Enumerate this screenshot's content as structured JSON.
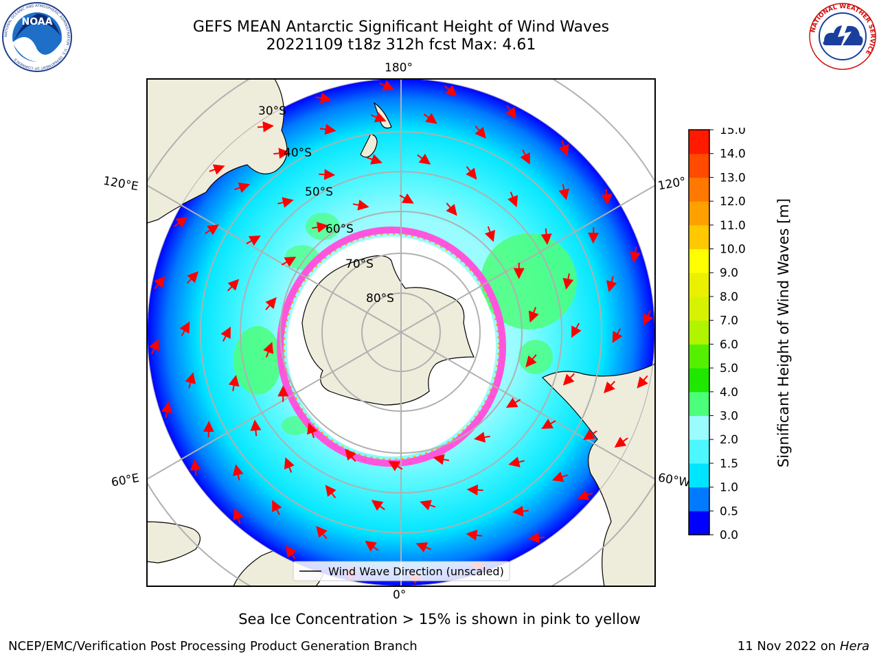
{
  "title": {
    "line1": "GEFS MEAN Antarctic Significant Height of Wind Waves",
    "line2": "20221109 t18z 312h fcst   Max: 4.61"
  },
  "map": {
    "longitude_labels": [
      "180°",
      "120°E",
      "120°",
      "60°E",
      "60°W",
      "0°"
    ],
    "latitude_labels": [
      "30°S",
      "40°S",
      "50°S",
      "60°S",
      "70°S",
      "80°S"
    ],
    "legend": "Wind Wave Direction (unscaled)",
    "colors": {
      "land": "#eeecdb",
      "ocean_low": "#0033ff",
      "ocean_mid": "#00ffff",
      "ocean_high": "#4cff88",
      "sea_ice": "#ff55dd",
      "arrow": "#ff0000",
      "grid": "#b0b0b0"
    }
  },
  "colorbar": {
    "label": "Significant Height of Wind Waves [m]",
    "ticks": [
      "0.0",
      "0.5",
      "1.0",
      "1.5",
      "2.0",
      "3.0",
      "4.0",
      "5.0",
      "6.0",
      "7.0",
      "8.0",
      "9.0",
      "10.0",
      "11.0",
      "12.0",
      "13.0",
      "14.0",
      "15.0"
    ],
    "colors": [
      "#0000ff",
      "#007bff",
      "#00e5ff",
      "#4cf7ff",
      "#9bfcff",
      "#4cff7a",
      "#1ee800",
      "#55f000",
      "#b0f400",
      "#d6f200",
      "#eaf000",
      "#ffff00",
      "#ffc800",
      "#ffa000",
      "#ff7800",
      "#ff4a00",
      "#ff1a00"
    ]
  },
  "caption": "Sea Ice Concentration > 15% is shown in pink to yellow",
  "footer": {
    "left": "NCEP/EMC/Verification Post Processing Product Generation Branch",
    "right_date": "11 Nov 2022 on",
    "right_host": "Hera"
  },
  "logos": {
    "noaa": "NOAA",
    "noaa_ring": "NATIONAL OCEANIC AND ATMOSPHERIC ADMINISTRATION · U.S. DEPARTMENT OF COMMERCE",
    "nws": "NATIONAL WEATHER SERVICE"
  }
}
